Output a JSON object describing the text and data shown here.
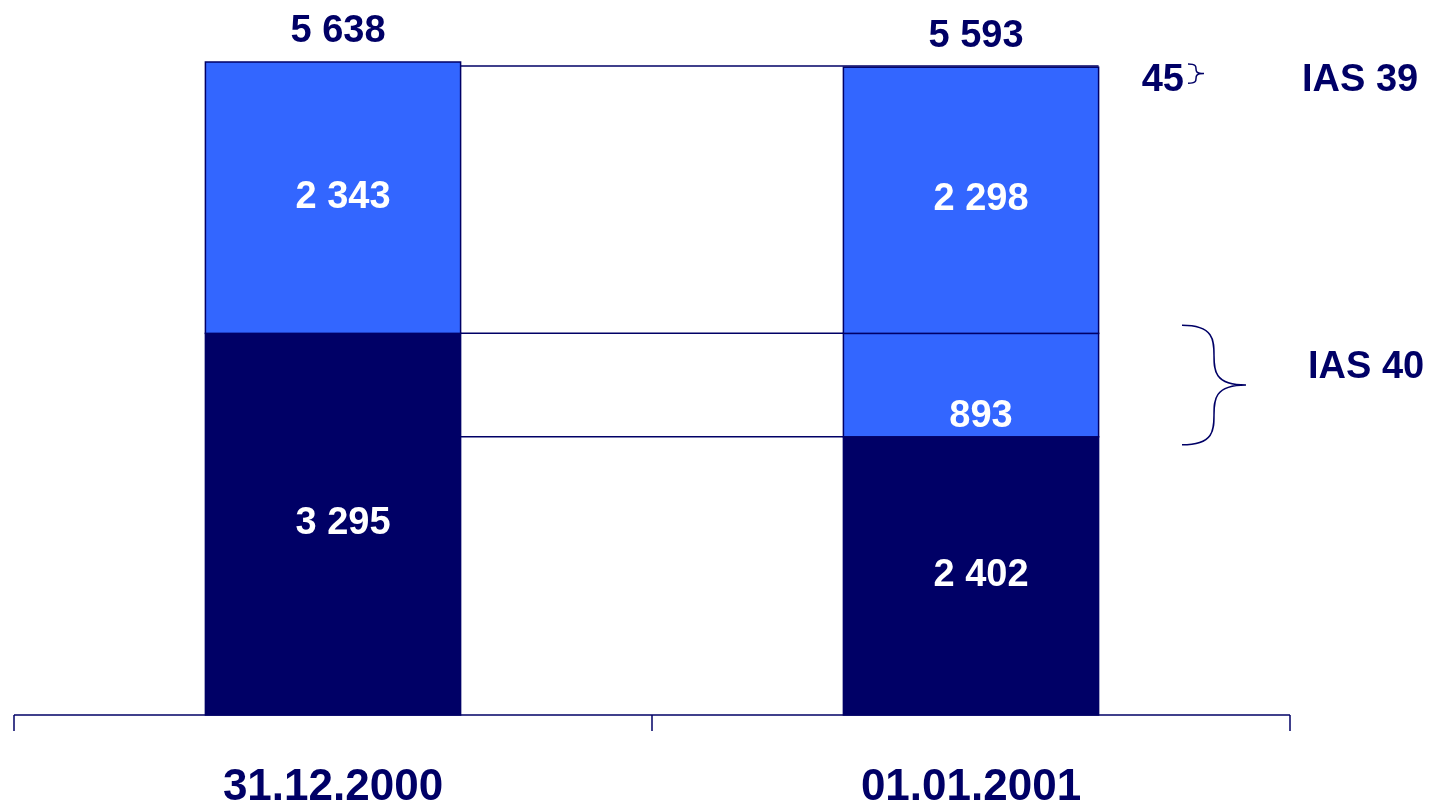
{
  "chart_data": {
    "type": "bar",
    "stacked": true,
    "categories": [
      "31.12.2000",
      "01.01.2001"
    ],
    "series": [
      {
        "color": "#000066",
        "values": [
          3295,
          2402
        ],
        "value_labels": [
          "3 295",
          "2 402"
        ]
      },
      {
        "color": "#3366ff",
        "values": [
          null,
          893
        ],
        "value_labels": [
          null,
          "893"
        ]
      },
      {
        "color": "#3366ff",
        "values": [
          2343,
          2298
        ],
        "value_labels": [
          "2 343",
          "2 298"
        ]
      }
    ],
    "totals": [
      "5 638",
      "5 593"
    ],
    "annotations": [
      "45",
      "IAS 39",
      "IAS 40"
    ]
  }
}
